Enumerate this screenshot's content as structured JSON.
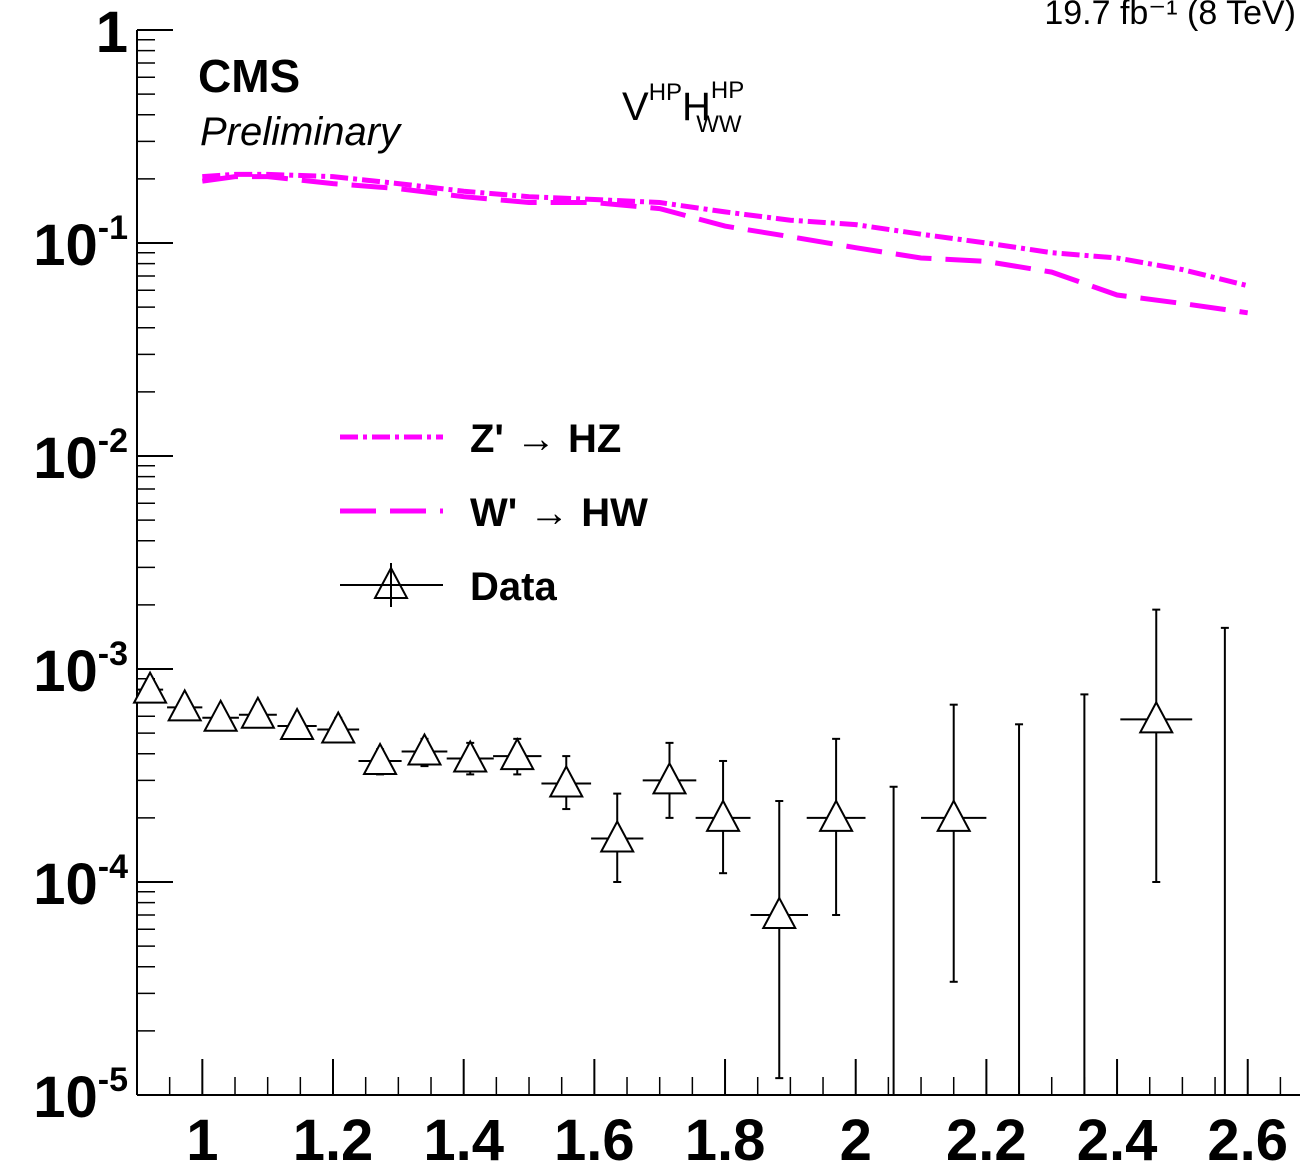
{
  "header": {
    "lumi_text": "19.7 fb⁻¹ (8 TeV)",
    "experiment": "CMS",
    "status": "Preliminary",
    "category_base_v": "V",
    "category_sup_v": "HP",
    "category_base_h": "H",
    "category_sup_h": "HP",
    "category_sub_h": "WW"
  },
  "colors": {
    "signal": "#ff00ff",
    "data": "#000000"
  },
  "chart_data": {
    "type": "line",
    "x_scale": "linear",
    "y_scale": "log",
    "xlim": [
      0.9,
      2.68
    ],
    "ylim": [
      1e-05,
      1
    ],
    "grid": false,
    "legend_position": "center-left",
    "xlabel": "",
    "ylabel": "",
    "x_tick_labels": [
      "1",
      "1.2",
      "1.4",
      "1.6",
      "1.8",
      "2",
      "2.2",
      "2.4",
      "2.6"
    ],
    "x_ticks": [
      1,
      1.2,
      1.4,
      1.6,
      1.8,
      2,
      2.2,
      2.4,
      2.6
    ],
    "y_tick_labels": [
      {
        "value": 1,
        "base": "1",
        "exp": ""
      },
      {
        "value": 0.1,
        "base": "10",
        "exp": "-1"
      },
      {
        "value": 0.01,
        "base": "10",
        "exp": "-2"
      },
      {
        "value": 0.001,
        "base": "10",
        "exp": "-3"
      },
      {
        "value": 0.0001,
        "base": "10",
        "exp": "-4"
      },
      {
        "value": 1e-05,
        "base": "10",
        "exp": "-5"
      }
    ],
    "series": [
      {
        "name": "Z' → HZ",
        "legend_name": "Z'",
        "legend_arrow": "→",
        "legend_target": "HZ",
        "style": "dash-dot",
        "x": [
          1.0,
          1.05,
          1.1,
          1.2,
          1.3,
          1.4,
          1.5,
          1.6,
          1.7,
          1.8,
          1.9,
          2.0,
          2.1,
          2.2,
          2.3,
          2.4,
          2.5,
          2.6
        ],
        "y": [
          0.205,
          0.21,
          0.21,
          0.205,
          0.19,
          0.175,
          0.165,
          0.16,
          0.155,
          0.14,
          0.128,
          0.122,
          0.11,
          0.1,
          0.09,
          0.085,
          0.075,
          0.063
        ]
      },
      {
        "name": "W' → HW",
        "legend_name": "W'",
        "legend_arrow": "→",
        "legend_target": "HW",
        "style": "long-dash",
        "x": [
          1.0,
          1.05,
          1.1,
          1.2,
          1.3,
          1.4,
          1.5,
          1.6,
          1.7,
          1.8,
          1.9,
          2.0,
          2.1,
          2.2,
          2.3,
          2.4,
          2.5,
          2.6
        ],
        "y": [
          0.195,
          0.205,
          0.205,
          0.19,
          0.18,
          0.165,
          0.155,
          0.155,
          0.145,
          0.12,
          0.107,
          0.095,
          0.085,
          0.082,
          0.073,
          0.057,
          0.052,
          0.047
        ]
      },
      {
        "name": "Data",
        "style": "markers",
        "marker": "open-triangle",
        "points": [
          {
            "x": 0.92,
            "y": 0.0008,
            "xerr": 0.02,
            "ylo": 0.00073,
            "yhi": 0.00087
          },
          {
            "x": 0.973,
            "y": 0.00066,
            "xerr": 0.027,
            "ylo": 0.0006,
            "yhi": 0.00072
          },
          {
            "x": 1.028,
            "y": 0.00059,
            "xerr": 0.028,
            "ylo": 0.00054,
            "yhi": 0.00065
          },
          {
            "x": 1.085,
            "y": 0.00061,
            "xerr": 0.029,
            "ylo": 0.00055,
            "yhi": 0.00068
          },
          {
            "x": 1.145,
            "y": 0.00054,
            "xerr": 0.03,
            "ylo": 0.00048,
            "yhi": 0.0006
          },
          {
            "x": 1.208,
            "y": 0.00052,
            "xerr": 0.032,
            "ylo": 0.00046,
            "yhi": 0.00059
          },
          {
            "x": 1.272,
            "y": 0.00037,
            "xerr": 0.033,
            "ylo": 0.00032,
            "yhi": 0.00042
          },
          {
            "x": 1.34,
            "y": 0.00041,
            "xerr": 0.035,
            "ylo": 0.00035,
            "yhi": 0.00047
          },
          {
            "x": 1.41,
            "y": 0.00038,
            "xerr": 0.036,
            "ylo": 0.00032,
            "yhi": 0.00045
          },
          {
            "x": 1.482,
            "y": 0.00039,
            "xerr": 0.037,
            "ylo": 0.00032,
            "yhi": 0.00047
          },
          {
            "x": 1.557,
            "y": 0.00029,
            "xerr": 0.038,
            "ylo": 0.00022,
            "yhi": 0.00039
          },
          {
            "x": 1.635,
            "y": 0.00016,
            "xerr": 0.04,
            "ylo": 0.0001,
            "yhi": 0.00026
          },
          {
            "x": 1.715,
            "y": 0.0003,
            "xerr": 0.041,
            "ylo": 0.0002,
            "yhi": 0.00045
          },
          {
            "x": 1.797,
            "y": 0.0002,
            "xerr": 0.042,
            "ylo": 0.00011,
            "yhi": 0.00037
          },
          {
            "x": 1.883,
            "y": 7e-05,
            "xerr": 0.044,
            "ylo": 1.2e-05,
            "yhi": 0.00024
          },
          {
            "x": 1.97,
            "y": 0.0002,
            "xerr": 0.045,
            "ylo": 7e-05,
            "yhi": 0.00047
          },
          {
            "x": 2.15,
            "y": 0.0002,
            "xerr": 0.05,
            "ylo": 3.4e-05,
            "yhi": 0.00068
          },
          {
            "x": 2.46,
            "y": 0.00058,
            "xerr": 0.055,
            "ylo": 0.0001,
            "yhi": 0.0019
          }
        ],
        "empty_bins": [
          {
            "x": 2.058,
            "yhi": 0.00028
          },
          {
            "x": 2.25,
            "yhi": 0.00055
          },
          {
            "x": 2.35,
            "yhi": 0.00076
          },
          {
            "x": 2.565,
            "yhi": 0.00156
          }
        ]
      }
    ]
  }
}
